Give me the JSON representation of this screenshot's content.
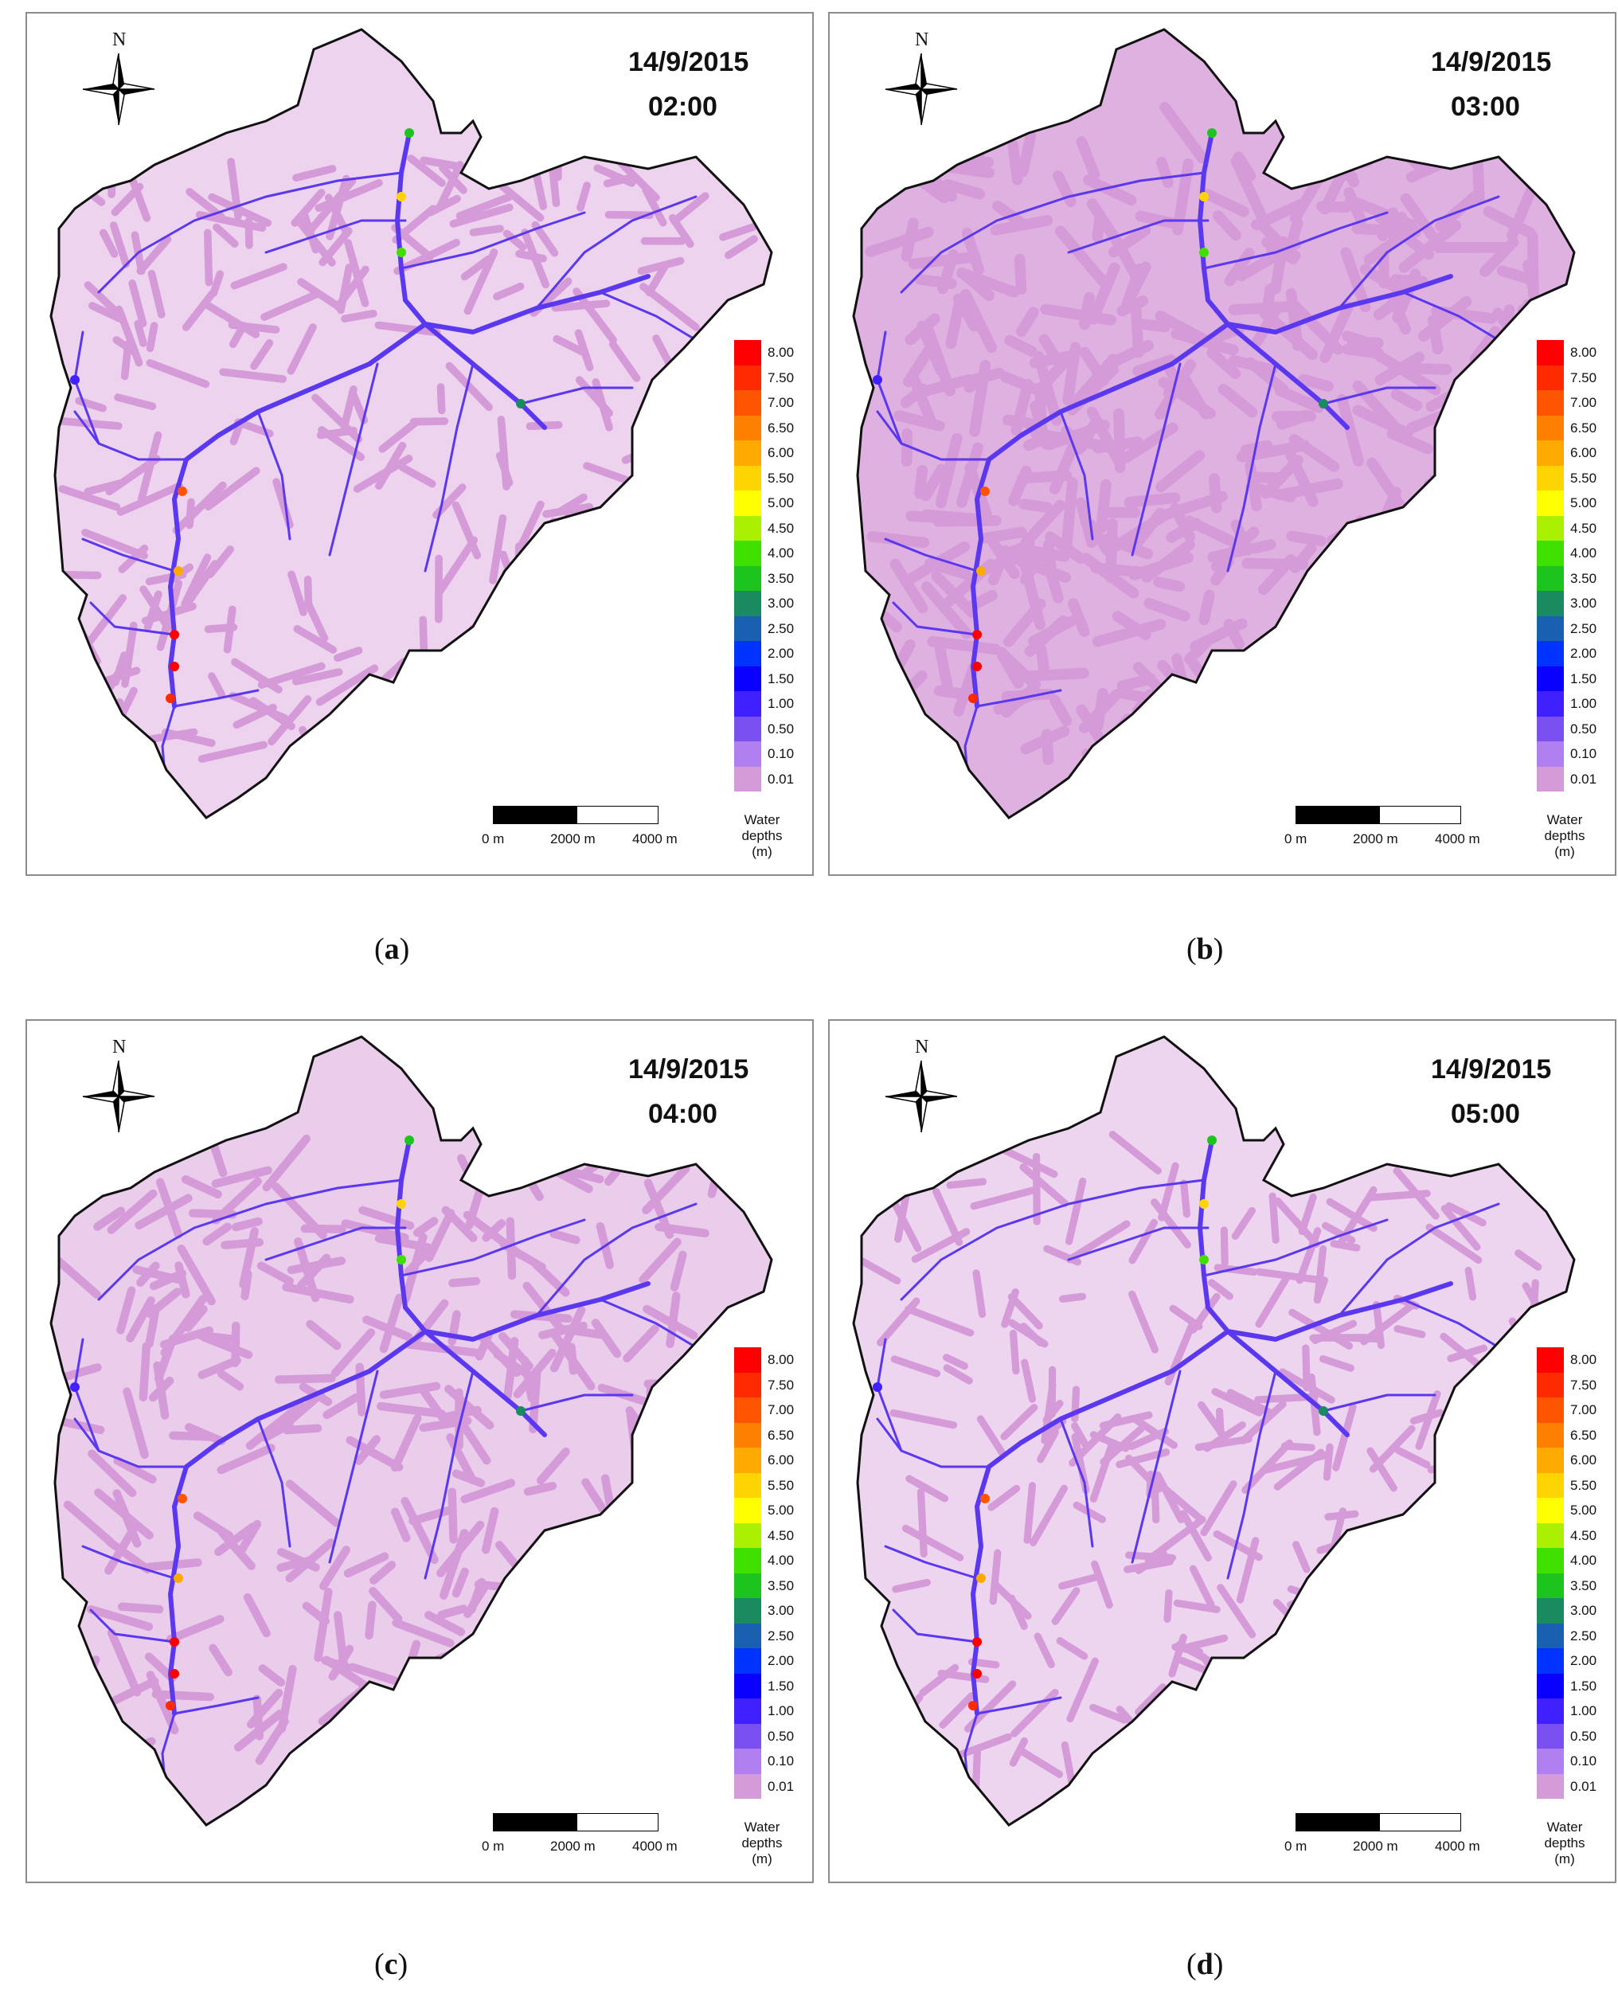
{
  "legend": {
    "title_line1": "Water",
    "title_line2": "depths",
    "title_line3": "(m)",
    "classes": [
      {
        "label": "8.00",
        "color": "#ff0000"
      },
      {
        "label": "7.50",
        "color": "#ff2a00"
      },
      {
        "label": "7.00",
        "color": "#ff5500"
      },
      {
        "label": "6.50",
        "color": "#ff7f00"
      },
      {
        "label": "6.00",
        "color": "#ffaa00"
      },
      {
        "label": "5.50",
        "color": "#ffd400"
      },
      {
        "label": "5.00",
        "color": "#ffff00"
      },
      {
        "label": "4.50",
        "color": "#aaf000"
      },
      {
        "label": "4.00",
        "color": "#3fe000"
      },
      {
        "label": "3.50",
        "color": "#1ec41e"
      },
      {
        "label": "3.00",
        "color": "#1a8a60"
      },
      {
        "label": "2.50",
        "color": "#1a60b0"
      },
      {
        "label": "2.00",
        "color": "#0033ff"
      },
      {
        "label": "1.50",
        "color": "#0a00ff"
      },
      {
        "label": "1.00",
        "color": "#4020ff"
      },
      {
        "label": "0.50",
        "color": "#7a50f0"
      },
      {
        "label": "0.10",
        "color": "#b080f0"
      },
      {
        "label": "0.01",
        "color": "#d59ad8"
      }
    ]
  },
  "scale_bar": {
    "label_0": "0 m",
    "label_1": "2000 m",
    "label_2": "4000 m"
  },
  "north_label": "N",
  "colors": {
    "flood_area": "#d59ad8",
    "channel": "#5a38f0",
    "boundary": "#111111"
  },
  "panels": [
    {
      "date": "14/9/2015",
      "time": "02:00",
      "caption": "a",
      "coverage": 0.45
    },
    {
      "date": "14/9/2015",
      "time": "03:00",
      "caption": "b",
      "coverage": 0.95
    },
    {
      "date": "14/9/2015",
      "time": "04:00",
      "caption": "c",
      "coverage": 0.55
    },
    {
      "date": "14/9/2015",
      "time": "05:00",
      "caption": "d",
      "coverage": 0.4
    }
  ]
}
